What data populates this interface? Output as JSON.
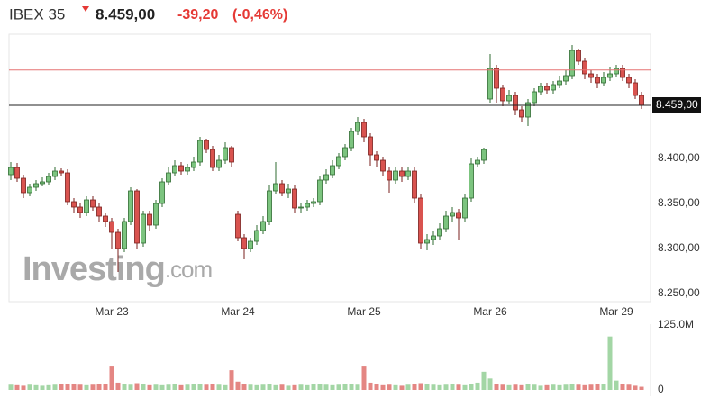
{
  "header": {
    "symbol": "IBEX 35",
    "price": "8.459,00",
    "change": "-39,20",
    "change_pct": "(-0,46%)"
  },
  "watermark": [
    "Investing",
    ".com"
  ],
  "chart_data": {
    "type": "candlestick",
    "categories": [
      null,
      null,
      null,
      null,
      null,
      null,
      null,
      null,
      null,
      null,
      null,
      null,
      null,
      null,
      null,
      null,
      "Mar 23",
      null,
      null,
      null,
      null,
      null,
      null,
      null,
      null,
      null,
      null,
      null,
      null,
      null,
      null,
      null,
      null,
      null,
      null,
      null,
      "Mar 24",
      null,
      null,
      null,
      null,
      null,
      null,
      null,
      null,
      null,
      null,
      null,
      null,
      null,
      null,
      null,
      null,
      null,
      null,
      null,
      "Mar 25",
      null,
      null,
      null,
      null,
      null,
      null,
      null,
      null,
      null,
      null,
      null,
      null,
      null,
      null,
      null,
      null,
      null,
      null,
      null,
      "Mar 26",
      null,
      null,
      null,
      null,
      null,
      null,
      null,
      null,
      null,
      null,
      null,
      null,
      null,
      null,
      null,
      null,
      null,
      null,
      null,
      "Mar 29",
      null,
      null,
      null,
      null
    ],
    "open": [
      8382,
      8390,
      8378,
      8362,
      8368,
      8372,
      8374,
      8380,
      8386,
      8384,
      8352,
      8346,
      8340,
      8354,
      8346,
      8336,
      8330,
      8318,
      8300,
      8330,
      8364,
      8306,
      8338,
      8326,
      8350,
      8374,
      8384,
      8392,
      8386,
      8390,
      8396,
      8420,
      8410,
      8390,
      8398,
      8412,
      8338,
      8312,
      8300,
      8308,
      8320,
      8330,
      8364,
      8372,
      8362,
      8366,
      8345,
      8346,
      8350,
      8352,
      8376,
      8382,
      8392,
      8402,
      8412,
      8430,
      8440,
      8424,
      8404,
      8398,
      8386,
      8376,
      8386,
      8380,
      8386,
      8356,
      8306,
      8310,
      8314,
      8322,
      8336,
      8340,
      8334,
      8356,
      8394,
      8398,
      8466,
      8500,
      8478,
      8464,
      8470,
      8454,
      8446,
      8462,
      8474,
      8480,
      8476,
      8482,
      8486,
      8492,
      8520,
      8508,
      8494,
      8490,
      8484,
      8490,
      8494,
      8500,
      8490,
      8484,
      8470
    ],
    "high": [
      8396,
      8395,
      8382,
      8372,
      8376,
      8379,
      8384,
      8390,
      8389,
      8388,
      8356,
      8350,
      8358,
      8358,
      8350,
      8340,
      8334,
      8322,
      8334,
      8368,
      8366,
      8342,
      8342,
      8354,
      8378,
      8390,
      8398,
      8396,
      8394,
      8402,
      8424,
      8422,
      8414,
      8404,
      8418,
      8414,
      8342,
      8316,
      8312,
      8326,
      8336,
      8370,
      8396,
      8376,
      8372,
      8370,
      8350,
      8354,
      8356,
      8380,
      8388,
      8398,
      8406,
      8416,
      8434,
      8446,
      8444,
      8428,
      8408,
      8402,
      8390,
      8390,
      8390,
      8390,
      8390,
      8360,
      8316,
      8320,
      8328,
      8342,
      8346,
      8344,
      8360,
      8400,
      8402,
      8412,
      8516,
      8504,
      8482,
      8476,
      8474,
      8458,
      8466,
      8478,
      8484,
      8484,
      8486,
      8492,
      8498,
      8526,
      8522,
      8512,
      8498,
      8494,
      8496,
      8502,
      8504,
      8504,
      8494,
      8488,
      8474
    ],
    "low": [
      8376,
      8374,
      8356,
      8358,
      8364,
      8369,
      8370,
      8376,
      8380,
      8348,
      8340,
      8334,
      8336,
      8342,
      8330,
      8324,
      8300,
      8274,
      8296,
      8326,
      8300,
      8302,
      8320,
      8322,
      8346,
      8370,
      8380,
      8382,
      8382,
      8386,
      8392,
      8406,
      8386,
      8386,
      8394,
      8390,
      8308,
      8288,
      8296,
      8304,
      8316,
      8326,
      8360,
      8358,
      8356,
      8340,
      8340,
      8342,
      8346,
      8348,
      8372,
      8378,
      8388,
      8398,
      8408,
      8426,
      8418,
      8392,
      8390,
      8380,
      8362,
      8372,
      8374,
      8376,
      8350,
      8300,
      8298,
      8304,
      8310,
      8318,
      8330,
      8310,
      8330,
      8352,
      8390,
      8394,
      8462,
      8462,
      8458,
      8460,
      8448,
      8440,
      8436,
      8458,
      8470,
      8472,
      8472,
      8478,
      8482,
      8488,
      8504,
      8488,
      8484,
      8478,
      8480,
      8486,
      8490,
      8486,
      8478,
      8466,
      8455
    ],
    "close": [
      8390,
      8378,
      8362,
      8368,
      8372,
      8374,
      8380,
      8386,
      8384,
      8352,
      8346,
      8340,
      8354,
      8346,
      8336,
      8330,
      8318,
      8300,
      8330,
      8364,
      8306,
      8338,
      8326,
      8350,
      8374,
      8384,
      8392,
      8386,
      8390,
      8396,
      8420,
      8410,
      8390,
      8398,
      8412,
      8396,
      8312,
      8300,
      8308,
      8320,
      8330,
      8364,
      8372,
      8362,
      8366,
      8345,
      8346,
      8350,
      8352,
      8376,
      8382,
      8392,
      8402,
      8412,
      8430,
      8440,
      8424,
      8404,
      8398,
      8386,
      8376,
      8386,
      8380,
      8386,
      8356,
      8306,
      8310,
      8314,
      8322,
      8336,
      8340,
      8334,
      8356,
      8394,
      8398,
      8410,
      8500,
      8478,
      8464,
      8470,
      8454,
      8446,
      8462,
      8474,
      8480,
      8476,
      8482,
      8486,
      8492,
      8520,
      8508,
      8494,
      8490,
      8484,
      8490,
      8494,
      8500,
      8490,
      8484,
      8470,
      8459
    ],
    "volume": [
      10,
      9,
      8,
      10,
      9,
      8,
      9,
      10,
      11,
      12,
      11,
      10,
      9,
      10,
      11,
      12,
      45,
      14,
      12,
      10,
      13,
      11,
      9,
      10,
      9,
      10,
      11,
      9,
      10,
      12,
      11,
      10,
      12,
      10,
      9,
      38,
      16,
      12,
      10,
      9,
      10,
      11,
      9,
      10,
      8,
      9,
      10,
      9,
      11,
      12,
      10,
      9,
      10,
      11,
      12,
      10,
      45,
      14,
      11,
      9,
      10,
      9,
      8,
      10,
      12,
      13,
      11,
      10,
      9,
      10,
      11,
      10,
      9,
      12,
      14,
      35,
      22,
      12,
      10,
      9,
      10,
      9,
      11,
      10,
      8,
      9,
      10,
      9,
      10,
      11,
      10,
      9,
      10,
      11,
      12,
      103,
      18,
      12,
      10,
      8,
      6
    ],
    "up_color": "#7cc47f",
    "up_edge": "#2f6b31",
    "down_color": "#d9534f",
    "down_edge": "#7a1f1c",
    "ylim": [
      8241,
      8538
    ],
    "yticks": [
      {
        "value": 8250,
        "label": "8.250,00"
      },
      {
        "value": 8300,
        "label": "8.300,00"
      },
      {
        "value": 8350,
        "label": "8.350,00"
      },
      {
        "value": 8400,
        "label": "8.400,00"
      }
    ],
    "last_price": {
      "value": 8459,
      "label": "8.459,00"
    },
    "previous_close": 8498.2,
    "vlim": [
      0,
      125
    ],
    "vticks": [
      0,
      {
        "value": 125,
        "label": "125.0M"
      }
    ],
    "grid": false
  }
}
